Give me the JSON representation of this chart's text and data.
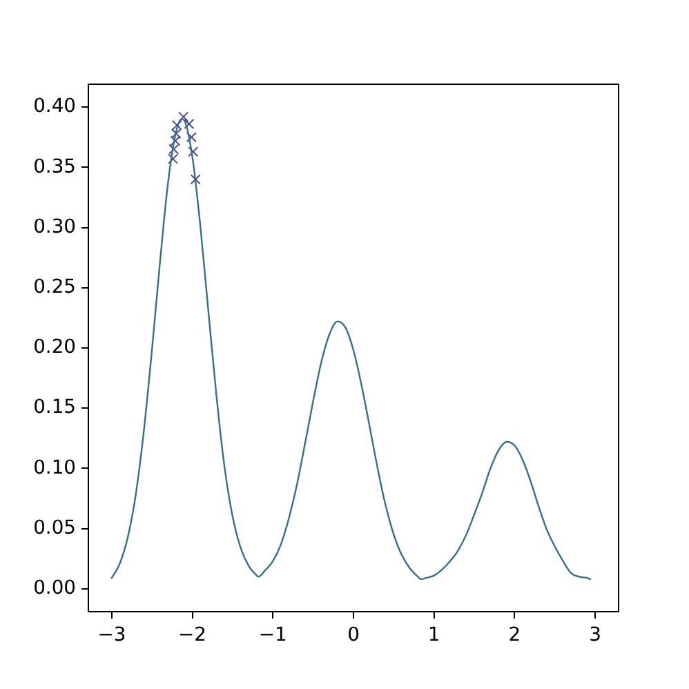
{
  "chart_data": {
    "type": "line",
    "xlim": [
      -3.29,
      3.29
    ],
    "ylim": [
      -0.019,
      0.419
    ],
    "xticks": [
      {
        "value": -3,
        "label": "−3"
      },
      {
        "value": -2,
        "label": "−2"
      },
      {
        "value": -1,
        "label": "−1"
      },
      0,
      1,
      2,
      3
    ],
    "yticks": [
      {
        "value": 0,
        "label": "0.00"
      },
      {
        "value": 0.05,
        "label": "0.05"
      },
      {
        "value": 0.1,
        "label": "0.10"
      },
      {
        "value": 0.15,
        "label": "0.15"
      },
      {
        "value": 0.2,
        "label": "0.20"
      },
      {
        "value": 0.25,
        "label": "0.25"
      },
      {
        "value": 0.3,
        "label": "0.30"
      },
      {
        "value": 0.35,
        "label": "0.35"
      },
      {
        "value": 0.4,
        "label": "0.40"
      }
    ],
    "grid": false,
    "legend": false,
    "series": [
      {
        "color": "#33708c",
        "marker": "none",
        "x": [
          -3.0,
          -2.9,
          -2.8,
          -2.7,
          -2.6,
          -2.5,
          -2.4,
          -2.3,
          -2.2,
          -2.13,
          -2.1,
          -2.0,
          -1.9,
          -1.8,
          -1.7,
          -1.6,
          -1.5,
          -1.4,
          -1.3,
          -1.2,
          -1.18,
          -1.1,
          -1.0,
          -0.9,
          -0.8,
          -0.7,
          -0.6,
          -0.5,
          -0.4,
          -0.3,
          -0.2,
          -0.1,
          0.0,
          0.1,
          0.2,
          0.3,
          0.4,
          0.5,
          0.6,
          0.7,
          0.8,
          0.84,
          0.9,
          1.0,
          1.1,
          1.2,
          1.3,
          1.4,
          1.5,
          1.6,
          1.7,
          1.8,
          1.9,
          2.0,
          2.1,
          2.2,
          2.3,
          2.4,
          2.5,
          2.6,
          2.7,
          2.8,
          2.9,
          2.94
        ],
        "values": [
          0.009,
          0.021,
          0.043,
          0.079,
          0.132,
          0.199,
          0.272,
          0.338,
          0.38,
          0.39,
          0.389,
          0.359,
          0.301,
          0.23,
          0.16,
          0.101,
          0.06,
          0.034,
          0.019,
          0.011,
          0.01,
          0.015,
          0.023,
          0.037,
          0.059,
          0.087,
          0.121,
          0.156,
          0.188,
          0.211,
          0.222,
          0.217,
          0.198,
          0.169,
          0.135,
          0.1,
          0.069,
          0.045,
          0.028,
          0.017,
          0.01,
          0.008,
          0.009,
          0.011,
          0.016,
          0.023,
          0.032,
          0.045,
          0.062,
          0.08,
          0.1,
          0.115,
          0.122,
          0.119,
          0.107,
          0.089,
          0.068,
          0.049,
          0.035,
          0.023,
          0.013,
          0.01,
          0.009,
          0.008
        ]
      },
      {
        "type": "scatter",
        "color": "#4b4b9b",
        "marker": "cross",
        "x": [
          -2.11,
          -2.19,
          -2.04,
          -2.2,
          -2.01,
          -2.21,
          -2.23,
          -1.99,
          -2.24,
          -1.96
        ],
        "values": [
          0.392,
          0.385,
          0.386,
          0.378,
          0.375,
          0.372,
          0.365,
          0.363,
          0.357,
          0.34
        ]
      }
    ]
  }
}
